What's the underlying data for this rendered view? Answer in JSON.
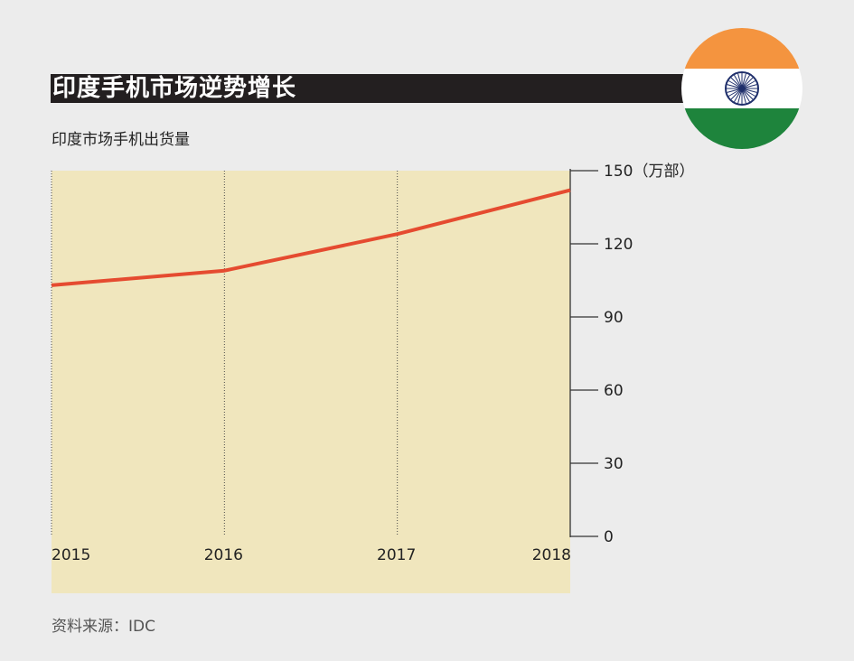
{
  "header": {
    "title": "印度手机市场逆势增长",
    "subtitle": "印度市场手机出货量"
  },
  "footer": {
    "source": "资料来源：IDC"
  },
  "flag": {
    "icon": "india-flag-icon",
    "colors": {
      "saffron": "#f4943f",
      "white": "#ffffff",
      "green": "#1e843c",
      "chakra": "#1f2f6b"
    }
  },
  "colors": {
    "plot_background": "#f0e6bd",
    "line": "#e54b30",
    "title_bar": "#231f20"
  },
  "chart_data": {
    "type": "line",
    "title": "印度手机市场逆势增长",
    "subtitle": "印度市场手机出货量",
    "x": [
      "2015",
      "2016",
      "2017",
      "2018"
    ],
    "series": [
      {
        "values": [
          103,
          109,
          124,
          142
        ]
      }
    ],
    "ylim": [
      0,
      150
    ],
    "yticks": [
      0,
      30,
      60,
      90,
      120,
      150
    ],
    "ytick_labels": [
      "0",
      "30",
      "60",
      "90",
      "120",
      "150（万部）"
    ],
    "ylabel": "",
    "xlabel": "",
    "y_axis_position": "right",
    "grid": "vertical dotted lines at each year"
  }
}
